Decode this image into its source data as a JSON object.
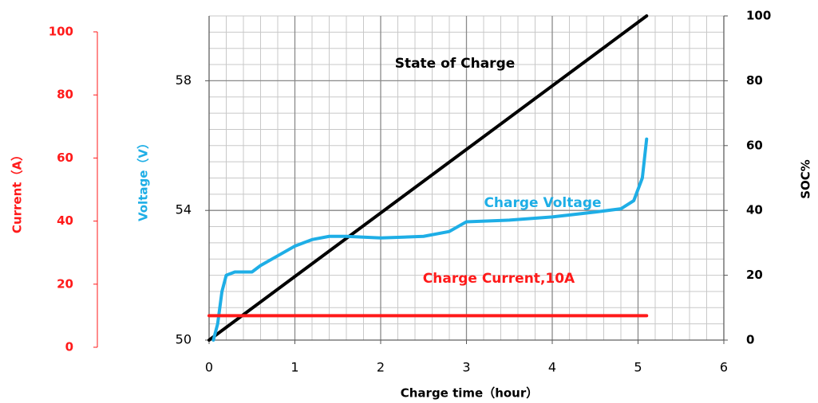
{
  "chart_data": {
    "type": "line",
    "xlabel": "Charge time（hour）",
    "ylabel": "Voltage（V）",
    "y2label": "SOC%",
    "y3label": "Current（A）",
    "xlim": [
      0,
      6
    ],
    "xticks": [
      0,
      1,
      2,
      3,
      4,
      5,
      6
    ],
    "ylim": [
      50,
      60
    ],
    "yticks": [
      50,
      54,
      58
    ],
    "y2lim": [
      0,
      100
    ],
    "y2ticks": [
      0,
      20,
      40,
      60,
      80,
      100
    ],
    "y3lim": [
      0,
      100
    ],
    "y3ticks": [
      0,
      20,
      40,
      60,
      80,
      100
    ],
    "grid": true,
    "series": [
      {
        "name": "State of Charge",
        "color": "#000000",
        "axis": "y2",
        "x": [
          0,
          5.1
        ],
        "values": [
          0,
          100
        ]
      },
      {
        "name": "Charge Voltage",
        "color": "#1eaee6",
        "axis": "y",
        "x": [
          0.05,
          0.1,
          0.15,
          0.2,
          0.3,
          0.5,
          0.6,
          0.8,
          1.0,
          1.2,
          1.4,
          1.6,
          2.0,
          2.5,
          2.8,
          3.0,
          3.5,
          4.0,
          4.5,
          4.8,
          4.95,
          5.05,
          5.1
        ],
        "values": [
          50,
          50.5,
          51.5,
          52,
          52.1,
          52.1,
          52.3,
          52.6,
          52.9,
          53.1,
          53.2,
          53.2,
          53.15,
          53.2,
          53.35,
          53.65,
          53.7,
          53.8,
          53.95,
          54.05,
          54.3,
          55,
          56.2
        ]
      },
      {
        "name": "Charge Current,10A",
        "color": "#ff1a1a",
        "axis": "y3",
        "x": [
          0,
          5.1
        ],
        "values": [
          10,
          10
        ]
      }
    ]
  }
}
